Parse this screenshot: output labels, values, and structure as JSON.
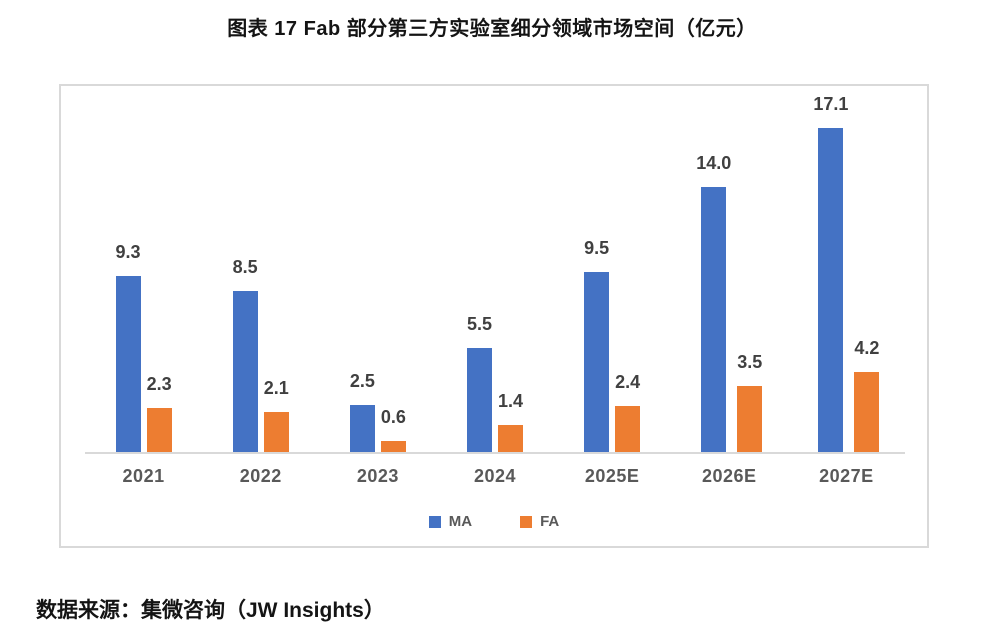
{
  "title": "图表 17 Fab 部分第三方实验室细分领域市场空间（亿元）",
  "source": "数据来源：集微咨询（JW Insights）",
  "chart_data": {
    "type": "bar",
    "title": "图表 17 Fab 部分第三方实验室细分领域市场空间（亿元）",
    "categories": [
      "2021",
      "2022",
      "2023",
      "2024",
      "2025E",
      "2026E",
      "2027E"
    ],
    "series": [
      {
        "name": "MA",
        "color": "#4472C4",
        "values": [
          9.3,
          8.5,
          2.5,
          5.5,
          9.5,
          14.0,
          17.1
        ]
      },
      {
        "name": "FA",
        "color": "#ED7D31",
        "values": [
          2.3,
          2.1,
          0.6,
          1.4,
          2.4,
          3.5,
          4.2
        ]
      }
    ],
    "xlabel": "",
    "ylabel": "",
    "unit": "亿元",
    "ylim": [
      0,
      19.3
    ],
    "grid": false,
    "y_axis_visible": false,
    "value_labels": true,
    "value_label_decimals": 1,
    "legend_position": "bottom",
    "colors": {
      "value_label": "#404040",
      "axis_label": "#595959",
      "axis_line": "#D9D9D9",
      "frame_border": "#D9D9D9"
    }
  }
}
